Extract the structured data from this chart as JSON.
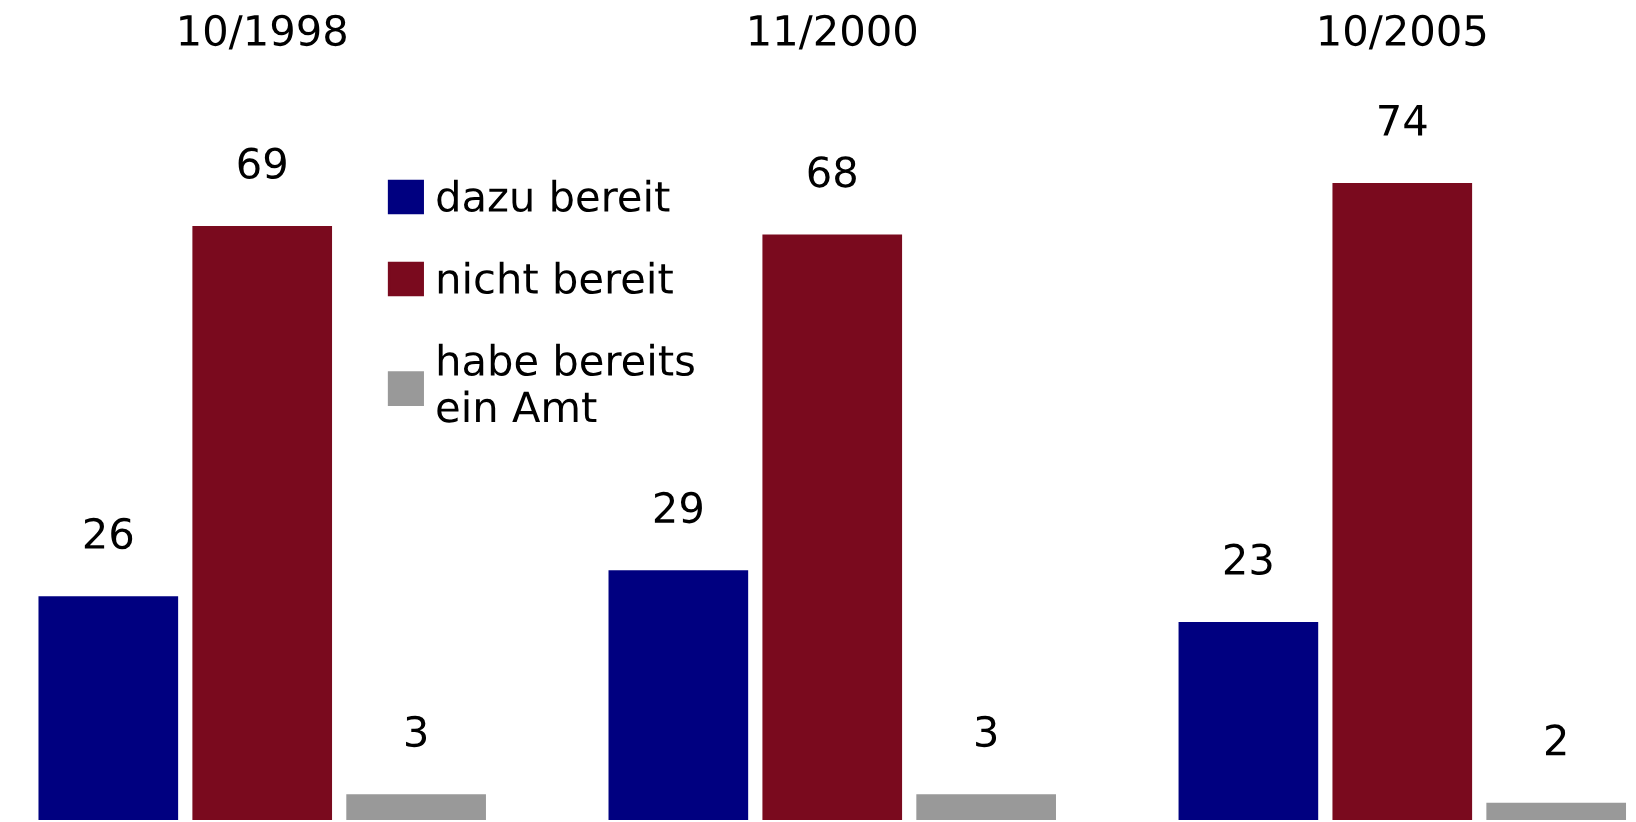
{
  "chart_data": {
    "type": "bar",
    "categories": [
      "10/1998",
      "11/2000",
      "10/2005"
    ],
    "series": [
      {
        "name": "dazu bereit",
        "color": "#000080",
        "values": [
          26,
          29,
          23
        ]
      },
      {
        "name": "nicht bereit",
        "color": "#7a0a1e",
        "values": [
          69,
          68,
          74
        ]
      },
      {
        "name": "habe bereits\nein Amt",
        "color": "#999999",
        "values": [
          3,
          3,
          2
        ]
      }
    ],
    "data_labels": true,
    "legend": "top left",
    "grid": false
  }
}
